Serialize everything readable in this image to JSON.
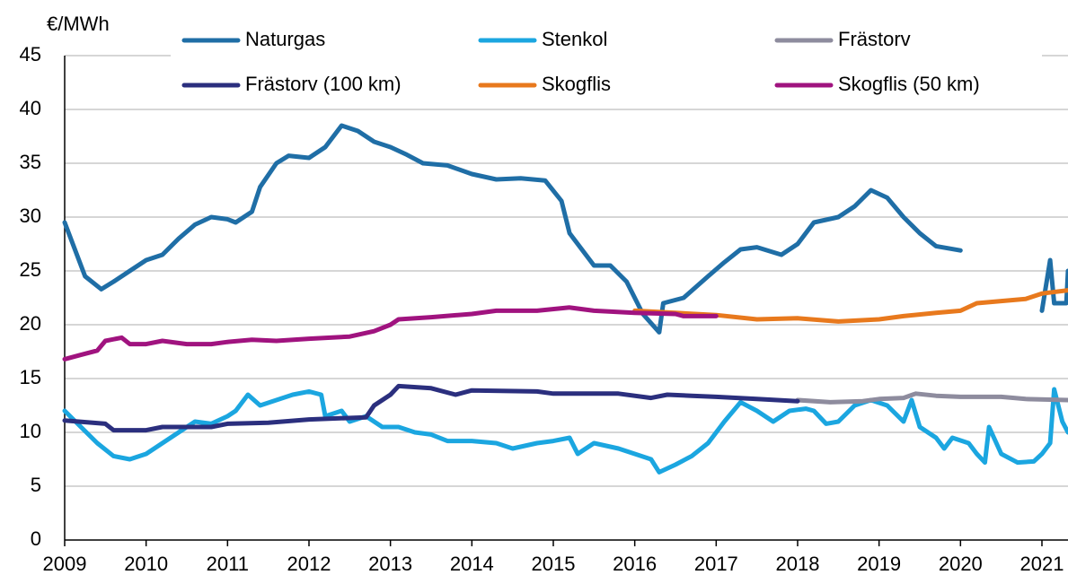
{
  "chart_data": {
    "type": "line",
    "y_label": "€/MWh",
    "xlim": [
      2009,
      2021.32
    ],
    "xticks": [
      2009,
      2010,
      2011,
      2012,
      2013,
      2014,
      2015,
      2016,
      2017,
      2018,
      2019,
      2020,
      2021
    ],
    "ylim": [
      0,
      45
    ],
    "yticks": [
      0,
      5,
      10,
      15,
      20,
      25,
      30,
      35,
      40,
      45
    ],
    "grid": true,
    "legend": "top",
    "series": [
      {
        "name": "Naturgas",
        "color": "#1f6ea6",
        "x": [
          2009.0,
          2009.25,
          2009.45,
          2009.6,
          2009.8,
          2010.0,
          2010.2,
          2010.4,
          2010.6,
          2010.8,
          2011.0,
          2011.1,
          2011.3,
          2011.4,
          2011.6,
          2011.75,
          2012.0,
          2012.2,
          2012.4,
          2012.6,
          2012.8,
          2013.0,
          2013.2,
          2013.4,
          2013.7,
          2014.0,
          2014.3,
          2014.6,
          2014.9,
          2015.1,
          2015.2,
          2015.5,
          2015.7,
          2015.9,
          2016.1,
          2016.3,
          2016.35,
          2016.6,
          2016.9,
          2017.1,
          2017.3,
          2017.5,
          2017.8,
          2018.0,
          2018.2,
          2018.5,
          2018.7,
          2018.9,
          2019.1,
          2019.3,
          2019.5,
          2019.7,
          2020.0,
          2020.5,
          2021.0,
          2021.1,
          2021.15,
          2021.3,
          2021.32
        ],
        "values": [
          29.5,
          24.5,
          23.3,
          24,
          25,
          26,
          26.5,
          28,
          29.3,
          30,
          29.8,
          29.5,
          30.5,
          32.8,
          35,
          35.7,
          35.5,
          36.5,
          38.5,
          38,
          37,
          36.5,
          35.8,
          35,
          34.8,
          34,
          33.5,
          33.6,
          33.4,
          31.5,
          28.5,
          25.5,
          25.5,
          24,
          21,
          19.3,
          22,
          22.5,
          24.5,
          25.8,
          27,
          27.2,
          26.5,
          27.5,
          29.5,
          30,
          31,
          32.5,
          31.8,
          30,
          28.5,
          27.3,
          26.9,
          null,
          21.3,
          26,
          22,
          22,
          25
        ]
      },
      {
        "name": "Stenkol",
        "color": "#1ba6e0",
        "x": [
          2009.0,
          2009.2,
          2009.4,
          2009.6,
          2009.8,
          2010.0,
          2010.2,
          2010.4,
          2010.6,
          2010.8,
          2011.0,
          2011.1,
          2011.25,
          2011.4,
          2011.6,
          2011.8,
          2012.0,
          2012.15,
          2012.2,
          2012.4,
          2012.5,
          2012.7,
          2012.9,
          2013.1,
          2013.3,
          2013.5,
          2013.7,
          2014.0,
          2014.3,
          2014.5,
          2014.8,
          2015.0,
          2015.2,
          2015.3,
          2015.5,
          2015.8,
          2016.0,
          2016.2,
          2016.3,
          2016.5,
          2016.7,
          2016.9,
          2017.1,
          2017.3,
          2017.5,
          2017.7,
          2017.9,
          2018.1,
          2018.2,
          2018.35,
          2018.5,
          2018.7,
          2018.9,
          2019.1,
          2019.3,
          2019.4,
          2019.5,
          2019.7,
          2019.8,
          2019.9,
          2020.1,
          2020.2,
          2020.3,
          2020.35,
          2020.5,
          2020.7,
          2020.9,
          2021.0,
          2021.1,
          2021.15,
          2021.25,
          2021.32
        ],
        "values": [
          12,
          10.5,
          9,
          7.8,
          7.5,
          8,
          9,
          10,
          11,
          10.8,
          11.5,
          12,
          13.5,
          12.5,
          13,
          13.5,
          13.8,
          13.5,
          11.5,
          12,
          11,
          11.5,
          10.5,
          10.5,
          10,
          9.8,
          9.2,
          9.2,
          9,
          8.5,
          9,
          9.2,
          9.5,
          8,
          9,
          8.5,
          8,
          7.5,
          6.3,
          7,
          7.8,
          9,
          11,
          12.8,
          12,
          11,
          12,
          12.2,
          12,
          10.8,
          11,
          12.5,
          13,
          12.5,
          11,
          13,
          10.5,
          9.5,
          8.5,
          9.5,
          9,
          8,
          7.2,
          10.5,
          8,
          7.2,
          7.3,
          8,
          9,
          14,
          11,
          10
        ]
      },
      {
        "name": "Frästorv",
        "color": "#8e8c9e",
        "x": [
          2018.0,
          2018.4,
          2018.8,
          2019.0,
          2019.3,
          2019.45,
          2019.7,
          2020.0,
          2020.5,
          2020.8,
          2021.32
        ],
        "values": [
          13,
          12.8,
          12.9,
          13.1,
          13.2,
          13.6,
          13.4,
          13.3,
          13.3,
          13.1,
          13
        ]
      },
      {
        "name": "Frästorv (100 km)",
        "color": "#2b2f7e",
        "x": [
          2009.0,
          2009.5,
          2009.6,
          2010.0,
          2010.2,
          2010.8,
          2011.0,
          2011.5,
          2012.0,
          2012.7,
          2012.8,
          2013.0,
          2013.1,
          2013.5,
          2013.8,
          2014.0,
          2014.8,
          2015.0,
          2015.8,
          2016.2,
          2016.4,
          2016.7,
          2017.0,
          2017.5,
          2018.0
        ],
        "values": [
          11.1,
          10.8,
          10.2,
          10.2,
          10.5,
          10.5,
          10.8,
          10.9,
          11.2,
          11.4,
          12.5,
          13.5,
          14.3,
          14.1,
          13.5,
          13.9,
          13.8,
          13.6,
          13.6,
          13.2,
          13.5,
          13.4,
          13.3,
          13.1,
          12.9
        ]
      },
      {
        "name": "Skogflis",
        "color": "#e8791d",
        "x": [
          2016.0,
          2016.5,
          2017.0,
          2017.5,
          2018.0,
          2018.5,
          2019.0,
          2019.3,
          2019.7,
          2020.0,
          2020.2,
          2020.5,
          2020.8,
          2021.0,
          2021.32
        ],
        "values": [
          21.3,
          21.1,
          20.9,
          20.5,
          20.6,
          20.3,
          20.5,
          20.8,
          21.1,
          21.3,
          22,
          22.2,
          22.4,
          22.9,
          23.2
        ]
      },
      {
        "name": "Skogflis (50 km)",
        "color": "#a0137f",
        "x": [
          2009.0,
          2009.2,
          2009.4,
          2009.5,
          2009.7,
          2009.8,
          2010.0,
          2010.2,
          2010.5,
          2010.8,
          2011.0,
          2011.3,
          2011.6,
          2012.0,
          2012.5,
          2012.8,
          2013.0,
          2013.1,
          2013.5,
          2014.0,
          2014.3,
          2014.8,
          2015.2,
          2015.5,
          2016.0,
          2016.5,
          2016.6,
          2017.0
        ],
        "values": [
          16.8,
          17.2,
          17.6,
          18.5,
          18.8,
          18.2,
          18.2,
          18.5,
          18.2,
          18.2,
          18.4,
          18.6,
          18.5,
          18.7,
          18.9,
          19.4,
          20,
          20.5,
          20.7,
          21,
          21.3,
          21.3,
          21.6,
          21.3,
          21.1,
          21.0,
          20.8,
          20.8
        ]
      }
    ]
  }
}
